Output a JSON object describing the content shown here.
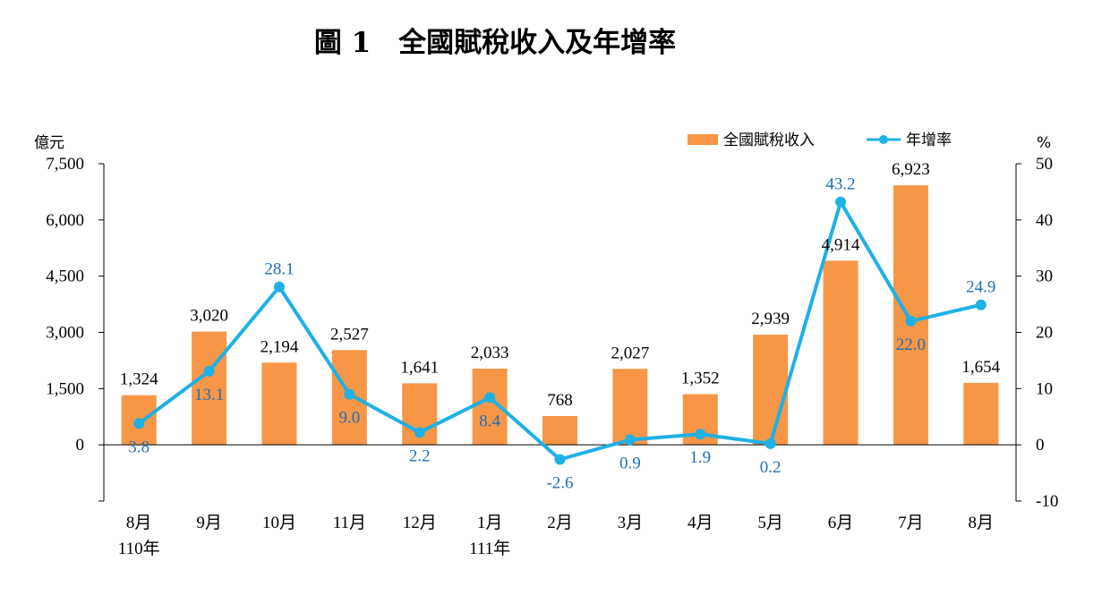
{
  "title": "圖 1　全國賦稅收入及年增率",
  "left_unit": "億元",
  "right_unit": "%",
  "legend": {
    "bar_label": "全國賦稅收入",
    "line_label": "年增率"
  },
  "colors": {
    "bar": "#f79646",
    "line": "#1fb0e6",
    "rate_text": "#1f6fb5"
  },
  "chart_data": {
    "type": "bar",
    "categories": [
      "8月",
      "9月",
      "10月",
      "11月",
      "12月",
      "1月",
      "2月",
      "3月",
      "4月",
      "5月",
      "6月",
      "7月",
      "8月"
    ],
    "year_labels": [
      "110年",
      "",
      "",
      "",
      "",
      "111年",
      "",
      "",
      "",
      "",
      "",
      "",
      ""
    ],
    "series": [
      {
        "name": "全國賦稅收入",
        "type": "bar",
        "axis": "left",
        "values": [
          1324,
          3020,
          2194,
          2527,
          1641,
          2033,
          768,
          2027,
          1352,
          2939,
          4914,
          6923,
          1654
        ],
        "labels": [
          "1,324",
          "3,020",
          "2,194",
          "2,527",
          "1,641",
          "2,033",
          "768",
          "2,027",
          "1,352",
          "2,939",
          "4,914",
          "6,923",
          "1,654"
        ]
      },
      {
        "name": "年增率",
        "type": "line",
        "axis": "right",
        "values": [
          3.8,
          13.1,
          28.1,
          9.0,
          2.2,
          8.4,
          -2.6,
          0.9,
          1.9,
          0.2,
          43.2,
          22.0,
          24.9
        ],
        "labels": [
          "3.8",
          "13.1",
          "28.1",
          "9.0",
          "2.2",
          "8.4",
          "-2.6",
          "0.9",
          "1.9",
          "0.2",
          "43.2",
          "22.0",
          "24.9"
        ]
      }
    ],
    "left_axis": {
      "ylim": [
        -1500,
        7500
      ],
      "ticks": [
        0,
        1500,
        3000,
        4500,
        6000,
        7500
      ],
      "tick_labels": [
        "0",
        "1,500",
        "3,000",
        "4,500",
        "6,000",
        "7,500"
      ]
    },
    "right_axis": {
      "ylim": [
        -10,
        50
      ],
      "ticks": [
        -10,
        0,
        10,
        20,
        30,
        40,
        50
      ],
      "tick_labels": [
        "-10",
        "0",
        "10",
        "20",
        "30",
        "40",
        "50"
      ]
    },
    "legend_position": "top-right",
    "grid": false
  }
}
